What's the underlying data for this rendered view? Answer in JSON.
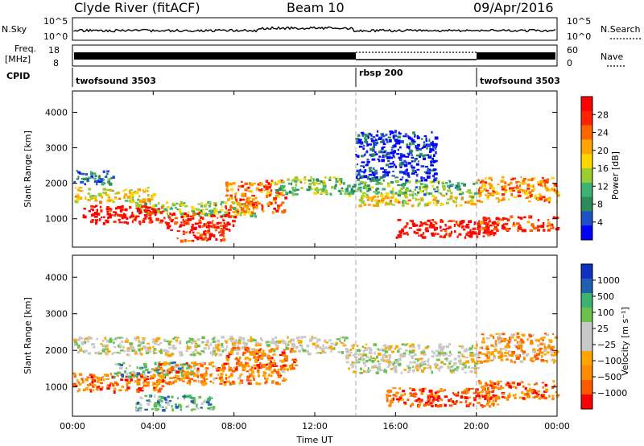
{
  "header": {
    "station": "Clyde River (fitACF)",
    "beam": "Beam 10",
    "date": "09/Apr/2016"
  },
  "strip": {
    "nsky_label": "N.Sky",
    "nsky_ticks": [
      "10^5",
      "10^0"
    ],
    "nsearch_label": "N.Search",
    "nsearch_ticks": [
      "10^5",
      "10^0"
    ],
    "freq_label": "Freq.",
    "freq_unit": "[MHz]",
    "freq_ticks": [
      "18",
      "8"
    ],
    "nave_label": "Nave",
    "nave_ticks": [
      "60",
      "0"
    ],
    "cpid_label": "CPID",
    "cpid_segments": [
      {
        "label": "twofsound 3503",
        "start_h": 0,
        "end_h": 14
      },
      {
        "label": "rbsp 200",
        "start_h": 14,
        "end_h": 20
      },
      {
        "label": "twofsound 3503",
        "start_h": 20,
        "end_h": 24
      }
    ]
  },
  "chart_data": [
    {
      "type": "heatmap",
      "name": "power",
      "ylabel": "Slant Range [km]",
      "yticks": [
        1000,
        2000,
        3000,
        4000
      ],
      "ylim": [
        200,
        4600
      ],
      "xlim": [
        0,
        24
      ],
      "colorbar_label": "Power [dB]",
      "colorbar_ticks": [
        "28",
        "24",
        "20",
        "16",
        "12",
        "8",
        "4"
      ],
      "colorbar_colors": [
        "#0000ff",
        "#2050c8",
        "#2e8b57",
        "#3cb371",
        "#9acd32",
        "#ffd700",
        "#ffa500",
        "#ff6600",
        "#ff2200",
        "#ff0000"
      ],
      "bands": [
        {
          "x0": 0.1,
          "x1": 4.0,
          "r0": 1500,
          "r1": 1900,
          "level": 0.55
        },
        {
          "x0": 0.0,
          "x1": 2.0,
          "r0": 2000,
          "r1": 2400,
          "level": 0.25
        },
        {
          "x0": 3.0,
          "x1": 9.0,
          "r0": 1100,
          "r1": 1500,
          "level": 0.45
        },
        {
          "x0": 0.5,
          "x1": 4.5,
          "r0": 900,
          "r1": 1400,
          "level": 0.95
        },
        {
          "x0": 4.5,
          "x1": 8.0,
          "r0": 700,
          "r1": 1200,
          "level": 0.9
        },
        {
          "x0": 7.5,
          "x1": 10.5,
          "r0": 1200,
          "r1": 2100,
          "level": 0.75
        },
        {
          "x0": 5.0,
          "x1": 7.5,
          "r0": 400,
          "r1": 700,
          "level": 0.85
        },
        {
          "x0": 10.0,
          "x1": 13.5,
          "r0": 1700,
          "r1": 2200,
          "level": 0.4
        },
        {
          "x0": 13.5,
          "x1": 20.0,
          "r0": 1700,
          "r1": 2100,
          "level": 0.35
        },
        {
          "x0": 14.0,
          "x1": 20.0,
          "r0": 1400,
          "r1": 1700,
          "level": 0.55
        },
        {
          "x0": 16.0,
          "x1": 21.0,
          "r0": 500,
          "r1": 1000,
          "level": 0.95
        },
        {
          "x0": 20.0,
          "x1": 24.0,
          "r0": 1500,
          "r1": 2200,
          "level": 0.7
        },
        {
          "x0": 20.0,
          "x1": 24.0,
          "r0": 700,
          "r1": 1100,
          "level": 0.85
        },
        {
          "x0": 14.0,
          "x1": 18.0,
          "r0": 2100,
          "r1": 3500,
          "level": 0.1
        }
      ]
    },
    {
      "type": "heatmap",
      "name": "velocity",
      "ylabel": "Slant Range [km]",
      "yticks": [
        1000,
        2000,
        3000,
        4000
      ],
      "ylim": [
        200,
        4600
      ],
      "xlim": [
        0,
        24
      ],
      "colorbar_label": "Velocity [m s⁻¹]",
      "colorbar_ticks": [
        "1000",
        "500",
        "100",
        "25",
        "−25",
        "−100",
        "−500",
        "−1000"
      ],
      "colorbar_colors": [
        "#ff0000",
        "#ff5a00",
        "#ff8c00",
        "#ffa500",
        "#c8c8c8",
        "#c8c8c8",
        "#6ac24c",
        "#3cb371",
        "#2060b0",
        "#1030c0"
      ],
      "bands": [
        {
          "x0": 0.0,
          "x1": 13.5,
          "r0": 1900,
          "r1": 2400,
          "level": 0.5
        },
        {
          "x0": 0.0,
          "x1": 4.5,
          "r0": 900,
          "r1": 1400,
          "level": 0.2
        },
        {
          "x0": 2.0,
          "x1": 6.0,
          "r0": 1300,
          "r1": 1700,
          "level": 0.7
        },
        {
          "x0": 4.0,
          "x1": 10.5,
          "r0": 1100,
          "r1": 1700,
          "level": 0.25
        },
        {
          "x0": 7.5,
          "x1": 11.0,
          "r0": 1500,
          "r1": 2100,
          "level": 0.2
        },
        {
          "x0": 3.0,
          "x1": 7.0,
          "r0": 400,
          "r1": 800,
          "level": 0.7
        },
        {
          "x0": 13.5,
          "x1": 20.0,
          "r0": 1400,
          "r1": 2200,
          "level": 0.5
        },
        {
          "x0": 15.5,
          "x1": 21.0,
          "r0": 500,
          "r1": 1000,
          "level": 0.15
        },
        {
          "x0": 20.0,
          "x1": 24.0,
          "r0": 1700,
          "r1": 2500,
          "level": 0.3
        },
        {
          "x0": 20.0,
          "x1": 24.0,
          "r0": 700,
          "r1": 1200,
          "level": 0.2
        }
      ]
    }
  ],
  "x_ticks": [
    "00:00",
    "04:00",
    "08:00",
    "12:00",
    "16:00",
    "20:00",
    "00:00"
  ],
  "x_label": "Time UT"
}
